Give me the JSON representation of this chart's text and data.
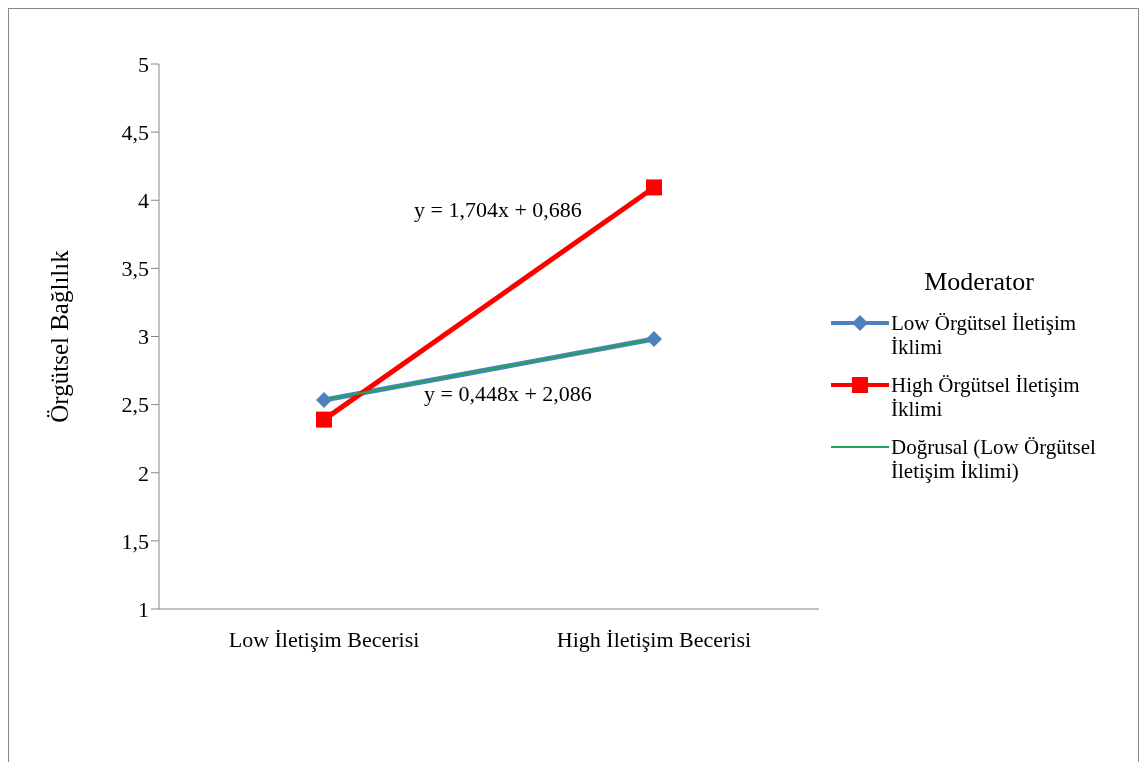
{
  "chart_data": {
    "type": "line",
    "categories": [
      "Low İletişim Becerisi",
      "High İletişim Becerisi"
    ],
    "ylabel": "Örgütsel Bağlılık",
    "legend_title": "Moderator",
    "series": [
      {
        "name": "Low Örgütsel İletişim İklimi",
        "color": "#4f81bd",
        "values": [
          2.534,
          2.982
        ],
        "marker": "diamond"
      },
      {
        "name": "High Örgütsel İletişim İklimi",
        "color": "#ff0000",
        "values": [
          2.39,
          4.094
        ],
        "marker": "square"
      },
      {
        "name": "Doğrusal (Low Örgütsel İletişim İklimi)",
        "type": "line",
        "color": "#1fa55a",
        "values": [
          2.534,
          2.982
        ],
        "marker": "none"
      }
    ],
    "ylim": [
      1,
      5
    ],
    "yticks": [
      1,
      {
        "value": 1.5,
        "label": "1,5"
      },
      2,
      {
        "value": 2.5,
        "label": "2,5"
      },
      3,
      {
        "value": 3.5,
        "label": "3,5"
      },
      4,
      {
        "value": 4.5,
        "label": "4,5"
      },
      5
    ],
    "annotations": [
      "y = 1,704x + 0,686",
      "y = 0,448x + 2,086"
    ],
    "grid": false,
    "legend": "right"
  }
}
